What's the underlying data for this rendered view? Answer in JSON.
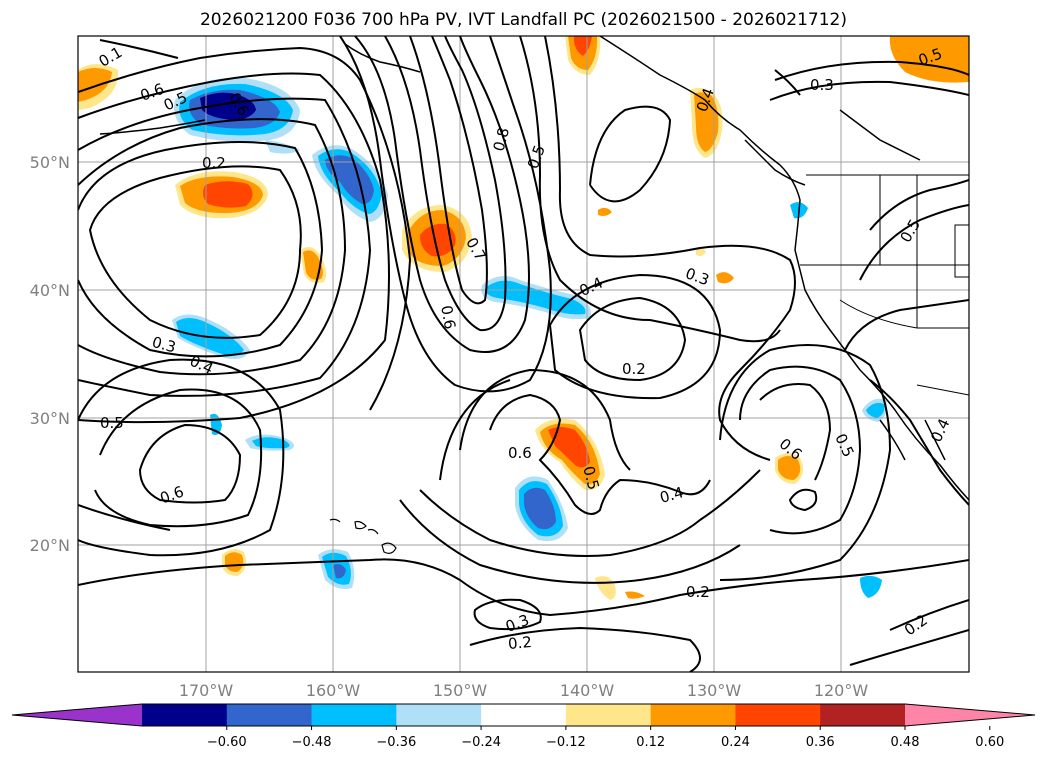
{
  "title": "2026021200 F036 700 hPa PV, IVT Landfall PC (2026021500 - 2026021712)",
  "map": {
    "lon_labels": [
      "170°W",
      "160°W",
      "150°W",
      "140°W",
      "130°W",
      "120°W"
    ],
    "lat_labels": [
      "50°N",
      "40°N",
      "30°N",
      "20°N"
    ],
    "contour_labels": [
      "0.1",
      "0.6",
      "0.5",
      "0.2",
      "0.8",
      "0.5",
      "0.3",
      "0.7",
      "0.6",
      "0.4",
      "0.3",
      "0.3",
      "0.4",
      "0.5",
      "0.2",
      "0.5",
      "0.6",
      "0.4",
      "0.5",
      "0.6",
      "0.5",
      "0.6",
      "0.4",
      "0.3",
      "0.2",
      "0.2",
      "0.2",
      "0.5",
      "0.4",
      "0.6"
    ]
  },
  "colorbar": {
    "colors": [
      "#9933cc",
      "#00008b",
      "#3366cc",
      "#00bfff",
      "#b0e0f8",
      "#ffffff",
      "#ffe68a",
      "#ff9900",
      "#ff4500",
      "#b22222",
      "#ff85a8"
    ],
    "tick_labels": [
      "−0.60",
      "−0.48",
      "−0.36",
      "−0.24",
      "−0.12",
      "0.12",
      "0.24",
      "0.36",
      "0.48",
      "0.60"
    ]
  }
}
